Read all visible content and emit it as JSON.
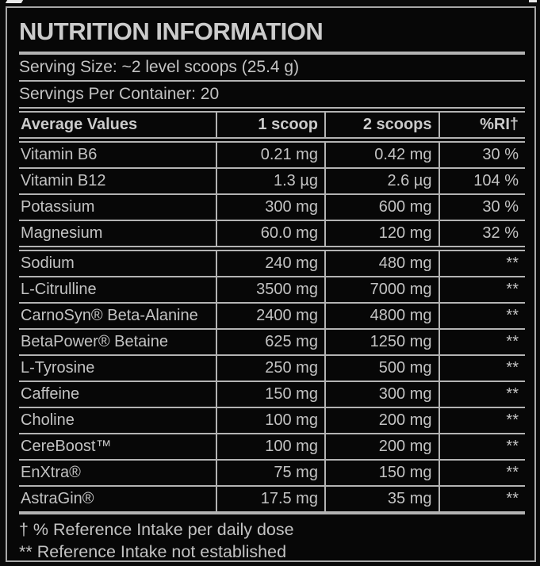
{
  "label": {
    "title": "NUTRITION INFORMATION",
    "serving_size": "Serving Size: ~2 level scoops (25.4 g)",
    "servings_per_container": "Servings Per Container: 20",
    "table": {
      "headers": [
        "Average Values",
        "1 scoop",
        "2 scoops",
        "%RI†"
      ],
      "rows": [
        {
          "name": "Vitamin B6",
          "one_scoop": "0.21 mg",
          "two_scoops": "0.42 mg",
          "ri": "30 %"
        },
        {
          "name": "Vitamin B12",
          "one_scoop": "1.3 µg",
          "two_scoops": "2.6 µg",
          "ri": "104 %"
        },
        {
          "name": "Potassium",
          "one_scoop": "300 mg",
          "two_scoops": "600 mg",
          "ri": "30 %"
        },
        {
          "name": "Magnesium",
          "one_scoop": "60.0 mg",
          "two_scoops": "120 mg",
          "ri": "32 %"
        },
        {
          "name": "Sodium",
          "one_scoop": "240 mg",
          "two_scoops": "480 mg",
          "ri": "**"
        },
        {
          "name": "L-Citrulline",
          "one_scoop": "3500 mg",
          "two_scoops": "7000 mg",
          "ri": "**"
        },
        {
          "name": "CarnoSyn® Beta-Alanine",
          "one_scoop": "2400 mg",
          "two_scoops": "4800 mg",
          "ri": "**"
        },
        {
          "name": "BetaPower® Betaine",
          "one_scoop": "625 mg",
          "two_scoops": "1250 mg",
          "ri": "**"
        },
        {
          "name": "L-Tyrosine",
          "one_scoop": "250 mg",
          "two_scoops": "500 mg",
          "ri": "**"
        },
        {
          "name": "Caffeine",
          "one_scoop": "150 mg",
          "two_scoops": "300 mg",
          "ri": "**"
        },
        {
          "name": "Choline",
          "one_scoop": "100 mg",
          "two_scoops": "200 mg",
          "ri": "**"
        },
        {
          "name": "CereBoost™",
          "one_scoop": "100 mg",
          "two_scoops": "200 mg",
          "ri": "**"
        },
        {
          "name": "EnXtra®",
          "one_scoop": "75 mg",
          "two_scoops": "150 mg",
          "ri": "**"
        },
        {
          "name": "AstraGin®",
          "one_scoop": "17.5 mg",
          "two_scoops": "35 mg",
          "ri": "**"
        }
      ]
    },
    "footnotes": [
      "† % Reference Intake per daily dose",
      "** Reference Intake not established"
    ]
  },
  "colors": {
    "background": "#0a0a0a",
    "rule": "#b3b3b3",
    "text": "#c3c3c3",
    "frame_border": "#a8a8a8"
  }
}
